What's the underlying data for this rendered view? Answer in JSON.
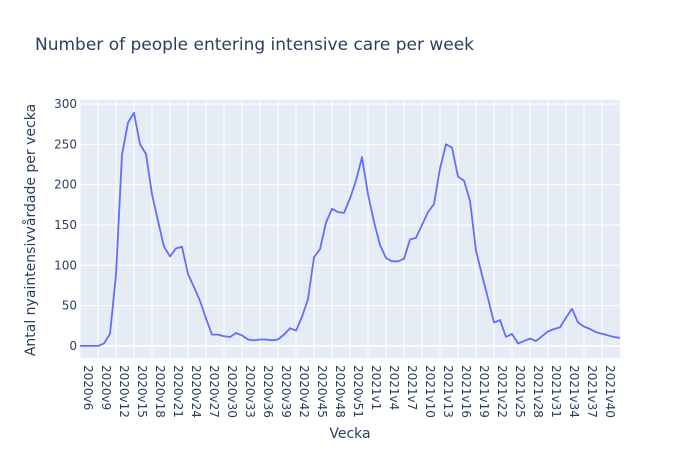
{
  "chart_data": {
    "type": "line",
    "title": "Number of people entering intensive care per week",
    "xlabel": "Vecka",
    "ylabel": "Antal nyaintensivvårdade per vecka",
    "ylim": [
      -15,
      305
    ],
    "yticks": [
      0,
      50,
      100,
      150,
      200,
      250,
      300
    ],
    "grid": true,
    "line_color": "#636efa",
    "plot_bg": "#e5ecf6",
    "x": [
      "2020v6",
      "2020v7",
      "2020v8",
      "2020v9",
      "2020v10",
      "2020v11",
      "2020v12",
      "2020v13",
      "2020v14",
      "2020v15",
      "2020v16",
      "2020v17",
      "2020v18",
      "2020v19",
      "2020v20",
      "2020v21",
      "2020v22",
      "2020v23",
      "2020v24",
      "2020v25",
      "2020v26",
      "2020v27",
      "2020v28",
      "2020v29",
      "2020v30",
      "2020v31",
      "2020v32",
      "2020v33",
      "2020v34",
      "2020v35",
      "2020v36",
      "2020v37",
      "2020v38",
      "2020v39",
      "2020v40",
      "2020v41",
      "2020v42",
      "2020v43",
      "2020v44",
      "2020v45",
      "2020v46",
      "2020v47",
      "2020v48",
      "2020v49",
      "2020v50",
      "2020v51",
      "2020v52",
      "2020v53",
      "2021v1",
      "2021v2",
      "2021v3",
      "2021v4",
      "2021v5",
      "2021v6",
      "2021v7",
      "2021v8",
      "2021v9",
      "2021v10",
      "2021v11",
      "2021v12",
      "2021v13",
      "2021v14",
      "2021v15",
      "2021v16",
      "2021v17",
      "2021v18",
      "2021v19",
      "2021v20",
      "2021v21",
      "2021v22",
      "2021v23",
      "2021v24",
      "2021v25",
      "2021v26",
      "2021v27",
      "2021v28",
      "2021v29",
      "2021v30",
      "2021v31",
      "2021v32",
      "2021v33",
      "2021v34",
      "2021v35",
      "2021v36",
      "2021v37",
      "2021v38",
      "2021v39",
      "2021v40",
      "2021v41",
      "2021v42",
      "2021v43"
    ],
    "y": [
      0,
      0,
      0,
      0,
      3,
      15,
      88,
      237,
      277,
      289,
      250,
      238,
      188,
      155,
      123,
      111,
      121,
      123,
      89,
      73,
      56,
      34,
      14,
      14,
      12,
      11,
      16,
      13,
      8,
      7,
      8,
      8,
      7,
      8,
      14,
      22,
      19,
      36,
      58,
      110,
      120,
      153,
      170,
      166,
      165,
      183,
      205,
      234,
      188,
      154,
      125,
      109,
      105,
      105,
      108,
      132,
      134,
      150,
      166,
      176,
      220,
      250,
      246,
      210,
      205,
      180,
      118,
      88,
      59,
      29,
      32,
      11,
      15,
      3,
      6,
      9,
      6,
      12,
      18,
      21,
      23,
      35,
      46,
      29,
      24,
      21,
      17,
      15,
      13,
      11,
      10
    ],
    "xtick_labels": [
      "2020v6",
      "2020v9",
      "2020v12",
      "2020v15",
      "2020v18",
      "2020v21",
      "2020v24",
      "2020v27",
      "2020v30",
      "2020v33",
      "2020v36",
      "2020v39",
      "2020v42",
      "2020v45",
      "2020v48",
      "2020v51",
      "2021v1",
      "2021v4",
      "2021v7",
      "2021v10",
      "2021v13",
      "2021v16",
      "2021v19",
      "2021v22",
      "2021v25",
      "2021v28",
      "2021v31",
      "2021v34",
      "2021v37",
      "2021v40"
    ]
  }
}
